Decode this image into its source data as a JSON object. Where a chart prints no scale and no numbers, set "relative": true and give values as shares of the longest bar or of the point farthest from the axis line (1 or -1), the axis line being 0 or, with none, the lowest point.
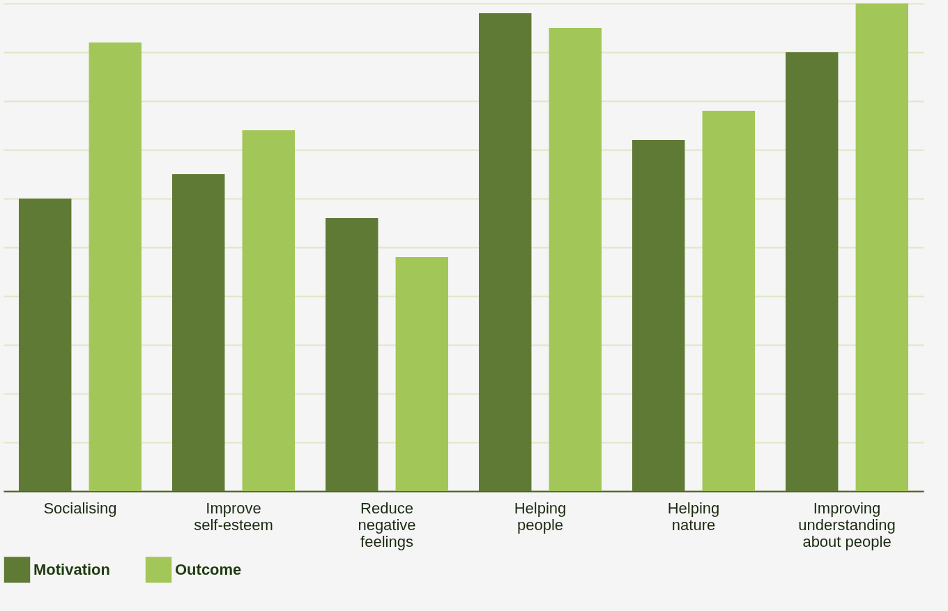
{
  "chart_data": {
    "type": "bar",
    "relative": true,
    "categories": [
      "Socialising",
      "Improve self-esteem",
      "Reduce negative feelings",
      "Helping people",
      "Helping nature",
      "Improving understanding about people"
    ],
    "series": [
      {
        "name": "Motivation",
        "color": "#5f7a35",
        "values": [
          0.6,
          0.65,
          0.56,
          0.98,
          0.72,
          0.9
        ]
      },
      {
        "name": "Outcome",
        "color": "#a2c657",
        "values": [
          0.92,
          0.74,
          0.48,
          0.95,
          0.78,
          1
        ]
      }
    ],
    "grid": "y",
    "legend": "bottom"
  }
}
